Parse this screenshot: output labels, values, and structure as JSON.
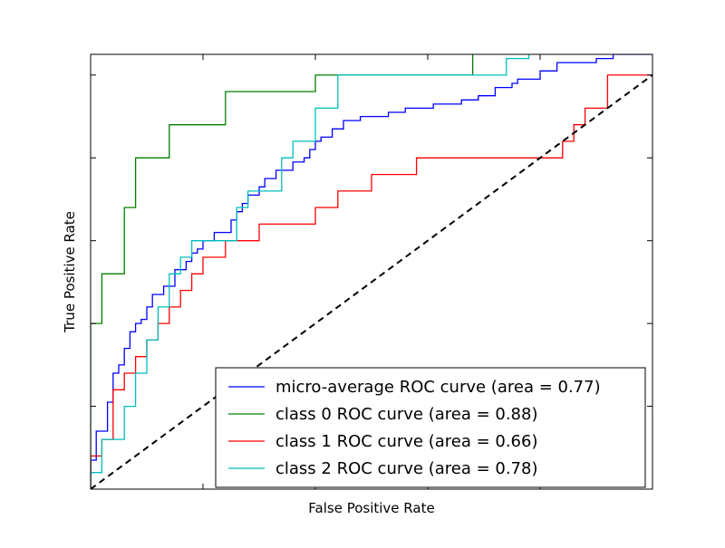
{
  "chart_data": {
    "type": "line",
    "title": "",
    "xlabel": "False Positive Rate",
    "ylabel": "True Positive Rate",
    "xlim": [
      0.0,
      1.0
    ],
    "ylim": [
      0.0,
      1.05
    ],
    "x_ticks": [
      0.0,
      0.2,
      0.4,
      0.6,
      0.8,
      1.0
    ],
    "y_ticks": [
      0.0,
      0.2,
      0.4,
      0.6,
      0.8,
      1.0
    ],
    "tick_labels_visible": false,
    "grid": false,
    "legend_position": "lower right",
    "series": [
      {
        "name": "micro-average ROC curve (area = 0.77)",
        "color": "#0000ff",
        "x": [
          0.0,
          0.0,
          0.01,
          0.01,
          0.03,
          0.03,
          0.04,
          0.04,
          0.05,
          0.05,
          0.06,
          0.06,
          0.07,
          0.07,
          0.08,
          0.08,
          0.09,
          0.09,
          0.1,
          0.1,
          0.11,
          0.11,
          0.13,
          0.13,
          0.15,
          0.15,
          0.17,
          0.17,
          0.18,
          0.18,
          0.19,
          0.19,
          0.2,
          0.2,
          0.22,
          0.22,
          0.25,
          0.25,
          0.26,
          0.26,
          0.27,
          0.27,
          0.28,
          0.28,
          0.3,
          0.3,
          0.31,
          0.31,
          0.33,
          0.33,
          0.36,
          0.36,
          0.38,
          0.38,
          0.39,
          0.39,
          0.4,
          0.4,
          0.41,
          0.41,
          0.43,
          0.43,
          0.45,
          0.45,
          0.48,
          0.48,
          0.53,
          0.53,
          0.56,
          0.56,
          0.61,
          0.61,
          0.66,
          0.66,
          0.69,
          0.69,
          0.72,
          0.72,
          0.75,
          0.75,
          0.76,
          0.76,
          0.8,
          0.8,
          0.83,
          0.83,
          0.86,
          0.86,
          0.9,
          0.9,
          0.93,
          0.93,
          1.0
        ],
        "y": [
          0.0,
          0.07,
          0.07,
          0.14,
          0.14,
          0.21,
          0.21,
          0.28,
          0.28,
          0.3,
          0.3,
          0.34,
          0.34,
          0.38,
          0.38,
          0.4,
          0.4,
          0.41,
          0.41,
          0.44,
          0.44,
          0.47,
          0.47,
          0.49,
          0.49,
          0.53,
          0.53,
          0.55,
          0.55,
          0.57,
          0.57,
          0.58,
          0.58,
          0.6,
          0.6,
          0.62,
          0.62,
          0.65,
          0.65,
          0.67,
          0.67,
          0.69,
          0.69,
          0.71,
          0.71,
          0.73,
          0.73,
          0.75,
          0.75,
          0.77,
          0.77,
          0.79,
          0.79,
          0.8,
          0.8,
          0.82,
          0.82,
          0.84,
          0.84,
          0.85,
          0.85,
          0.87,
          0.87,
          0.89,
          0.89,
          0.9,
          0.9,
          0.91,
          0.91,
          0.92,
          0.92,
          0.93,
          0.93,
          0.94,
          0.94,
          0.95,
          0.95,
          0.97,
          0.97,
          0.98,
          0.98,
          0.99,
          0.99,
          1.01,
          1.01,
          1.03,
          1.03,
          1.03,
          1.03,
          1.04,
          1.04,
          1.05,
          1.05
        ]
      },
      {
        "name": "class 0 ROC curve (area = 0.88)",
        "color": "#008000",
        "x": [
          0.0,
          0.0,
          0.02,
          0.02,
          0.06,
          0.06,
          0.08,
          0.08,
          0.14,
          0.14,
          0.24,
          0.24,
          0.4,
          0.4,
          0.68,
          0.68,
          0.72,
          0.72,
          1.0
        ],
        "y": [
          0.0,
          0.4,
          0.4,
          0.52,
          0.52,
          0.68,
          0.68,
          0.8,
          0.8,
          0.88,
          0.88,
          0.96,
          0.96,
          1.0,
          1.0,
          1.08,
          1.08,
          1.12,
          1.12
        ]
      },
      {
        "name": "class 1 ROC curve (area = 0.66)",
        "color": "#ff0000",
        "x": [
          0.0,
          0.0,
          0.02,
          0.02,
          0.04,
          0.04,
          0.06,
          0.06,
          0.08,
          0.08,
          0.1,
          0.1,
          0.12,
          0.12,
          0.14,
          0.14,
          0.16,
          0.16,
          0.18,
          0.18,
          0.2,
          0.2,
          0.24,
          0.24,
          0.3,
          0.3,
          0.4,
          0.4,
          0.44,
          0.44,
          0.5,
          0.5,
          0.58,
          0.58,
          0.84,
          0.84,
          0.86,
          0.86,
          0.88,
          0.88,
          0.92,
          0.92,
          1.0
        ],
        "y": [
          0.0,
          0.08,
          0.08,
          0.12,
          0.12,
          0.24,
          0.24,
          0.28,
          0.28,
          0.32,
          0.32,
          0.36,
          0.36,
          0.4,
          0.4,
          0.44,
          0.44,
          0.48,
          0.48,
          0.52,
          0.52,
          0.56,
          0.56,
          0.6,
          0.6,
          0.64,
          0.64,
          0.68,
          0.68,
          0.72,
          0.72,
          0.76,
          0.76,
          0.8,
          0.8,
          0.84,
          0.84,
          0.88,
          0.88,
          0.92,
          0.92,
          1.0,
          1.0
        ]
      },
      {
        "name": "class 2 ROC curve (area = 0.78)",
        "color": "#00bfbf",
        "x": [
          0.0,
          0.0,
          0.02,
          0.02,
          0.06,
          0.06,
          0.08,
          0.08,
          0.1,
          0.1,
          0.12,
          0.12,
          0.14,
          0.14,
          0.16,
          0.16,
          0.18,
          0.18,
          0.26,
          0.26,
          0.28,
          0.28,
          0.34,
          0.34,
          0.36,
          0.36,
          0.4,
          0.4,
          0.44,
          0.44,
          0.74,
          0.74,
          0.78,
          0.78,
          1.0
        ],
        "y": [
          0.0,
          0.04,
          0.04,
          0.12,
          0.12,
          0.2,
          0.2,
          0.28,
          0.28,
          0.36,
          0.36,
          0.44,
          0.44,
          0.52,
          0.52,
          0.56,
          0.56,
          0.6,
          0.6,
          0.68,
          0.68,
          0.72,
          0.72,
          0.8,
          0.8,
          0.84,
          0.84,
          0.92,
          0.92,
          1.0,
          1.0,
          1.04,
          1.04,
          1.12,
          1.12
        ]
      }
    ],
    "reference_line": {
      "x": [
        0.0,
        1.0
      ],
      "y": [
        0.0,
        1.0
      ],
      "style": "dashed",
      "color": "#000000"
    }
  }
}
